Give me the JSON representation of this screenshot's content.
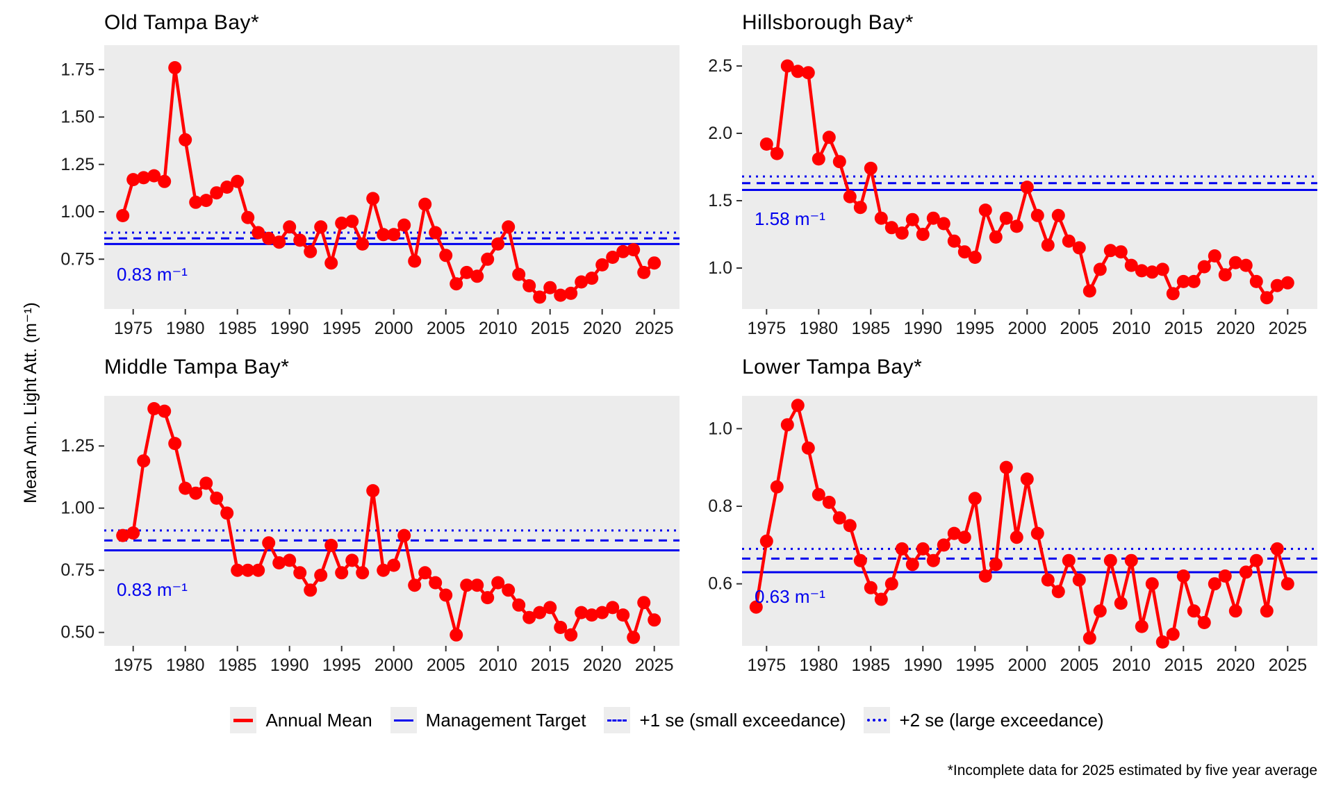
{
  "figure": {
    "y_axis_label": "Mean Ann. Light Att. (m⁻¹)",
    "footnote": "*Incomplete data for 2025 estimated by five year average"
  },
  "legend": {
    "items": [
      {
        "label": "Annual Mean",
        "swatch": "red-solid-line"
      },
      {
        "label": "Management Target",
        "swatch": "blue-solid-line"
      },
      {
        "label": "+1 se (small exceedance)",
        "swatch": "blue-dashed-line"
      },
      {
        "label": "+2 se (large exceedance)",
        "swatch": "blue-dotted-line"
      }
    ]
  },
  "colors": {
    "annual_mean": "#ff0000",
    "reference_lines": "#0000ee",
    "panel_background": "#ececec",
    "text": "#000000"
  },
  "chart_data": [
    {
      "type": "line",
      "title": "Old Tampa Bay*",
      "series_name": "Annual Mean",
      "start_year": 1974,
      "end_year": 2025,
      "values": [
        0.98,
        1.17,
        1.18,
        1.19,
        1.16,
        1.76,
        1.38,
        1.05,
        1.06,
        1.1,
        1.13,
        1.16,
        0.97,
        0.89,
        0.86,
        0.84,
        0.92,
        0.85,
        0.79,
        0.92,
        0.73,
        0.94,
        0.95,
        0.83,
        1.07,
        0.88,
        0.88,
        0.93,
        0.74,
        1.04,
        0.89,
        0.77,
        0.62,
        0.68,
        0.66,
        0.75,
        0.83,
        0.92,
        0.67,
        0.61,
        0.55,
        0.6,
        0.56,
        0.57,
        0.63,
        0.65,
        0.72,
        0.76,
        0.79,
        0.8,
        0.68,
        0.73
      ],
      "management_target": 0.83,
      "plus_1se": 0.86,
      "plus_2se": 0.89,
      "target_label": "0.83 m⁻¹",
      "x_tick_years": [
        1975,
        1980,
        1985,
        1990,
        1995,
        2000,
        2005,
        2010,
        2015,
        2020,
        2025
      ],
      "y_tick_values": [
        0.75,
        1.0,
        1.25,
        1.5,
        1.75
      ],
      "y_tick_labels": [
        "0.75",
        "1.00",
        "1.25",
        "1.50",
        "1.75"
      ],
      "ylim": [
        0.49,
        1.88
      ],
      "grid": false,
      "legend_position": "bottom"
    },
    {
      "type": "line",
      "title": "Hillsborough Bay*",
      "series_name": "Annual Mean",
      "start_year": 1975,
      "end_year": 2025,
      "values": [
        1.92,
        1.85,
        2.5,
        2.46,
        2.45,
        1.81,
        1.97,
        1.79,
        1.53,
        1.45,
        1.74,
        1.37,
        1.3,
        1.26,
        1.36,
        1.25,
        1.37,
        1.33,
        1.2,
        1.12,
        1.08,
        1.43,
        1.23,
        1.37,
        1.31,
        1.6,
        1.39,
        1.17,
        1.39,
        1.2,
        1.15,
        0.83,
        0.99,
        1.13,
        1.12,
        1.02,
        0.98,
        0.97,
        0.99,
        0.81,
        0.9,
        0.9,
        1.01,
        1.09,
        0.95,
        1.04,
        1.02,
        0.9,
        0.78,
        0.87,
        0.89
      ],
      "management_target": 1.58,
      "plus_1se": 1.63,
      "plus_2se": 1.68,
      "target_label": "1.58 m⁻¹",
      "x_tick_years": [
        1975,
        1980,
        1985,
        1990,
        1995,
        2000,
        2005,
        2010,
        2015,
        2020,
        2025
      ],
      "y_tick_values": [
        1.0,
        1.5,
        2.0,
        2.5
      ],
      "y_tick_labels": [
        "1.0",
        "1.5",
        "2.0",
        "2.5"
      ],
      "ylim": [
        0.7,
        2.66
      ],
      "grid": false,
      "legend_position": "bottom"
    },
    {
      "type": "line",
      "title": "Middle Tampa Bay*",
      "series_name": "Annual Mean",
      "start_year": 1974,
      "end_year": 2025,
      "values": [
        0.89,
        0.9,
        1.19,
        1.4,
        1.39,
        1.26,
        1.08,
        1.06,
        1.1,
        1.04,
        0.98,
        0.75,
        0.75,
        0.75,
        0.86,
        0.78,
        0.79,
        0.74,
        0.67,
        0.73,
        0.85,
        0.74,
        0.79,
        0.74,
        1.07,
        0.75,
        0.77,
        0.89,
        0.69,
        0.74,
        0.7,
        0.65,
        0.49,
        0.69,
        0.69,
        0.64,
        0.7,
        0.67,
        0.61,
        0.56,
        0.58,
        0.6,
        0.52,
        0.49,
        0.58,
        0.57,
        0.58,
        0.6,
        0.57,
        0.48,
        0.62,
        0.55
      ],
      "management_target": 0.83,
      "plus_1se": 0.87,
      "plus_2se": 0.91,
      "target_label": "0.83 m⁻¹",
      "x_tick_years": [
        1975,
        1980,
        1985,
        1990,
        1995,
        2000,
        2005,
        2010,
        2015,
        2020,
        2025
      ],
      "y_tick_values": [
        0.5,
        0.75,
        1.0,
        1.25
      ],
      "y_tick_labels": [
        "0.50",
        "0.75",
        "1.00",
        "1.25"
      ],
      "ylim": [
        0.45,
        1.45
      ],
      "grid": false,
      "legend_position": "bottom"
    },
    {
      "type": "line",
      "title": "Lower Tampa Bay*",
      "series_name": "Annual Mean",
      "start_year": 1974,
      "end_year": 2025,
      "values": [
        0.54,
        0.71,
        0.85,
        1.01,
        1.06,
        0.95,
        0.83,
        0.81,
        0.77,
        0.75,
        0.66,
        0.59,
        0.56,
        0.6,
        0.69,
        0.65,
        0.69,
        0.66,
        0.7,
        0.73,
        0.72,
        0.82,
        0.62,
        0.65,
        0.9,
        0.72,
        0.87,
        0.73,
        0.61,
        0.58,
        0.66,
        0.61,
        0.46,
        0.53,
        0.66,
        0.55,
        0.66,
        0.49,
        0.6,
        0.45,
        0.47,
        0.62,
        0.53,
        0.5,
        0.6,
        0.62,
        0.53,
        0.63,
        0.66,
        0.53,
        0.69,
        0.6
      ],
      "management_target": 0.63,
      "plus_1se": 0.665,
      "plus_2se": 0.69,
      "target_label": "0.63 m⁻¹",
      "x_tick_years": [
        1975,
        1980,
        1985,
        1990,
        1995,
        2000,
        2005,
        2010,
        2015,
        2020,
        2025
      ],
      "y_tick_values": [
        0.6,
        0.8,
        1.0
      ],
      "y_tick_labels": [
        "0.6",
        "0.8",
        "1.0"
      ],
      "ylim": [
        0.44,
        1.09
      ],
      "grid": false,
      "legend_position": "bottom"
    }
  ]
}
